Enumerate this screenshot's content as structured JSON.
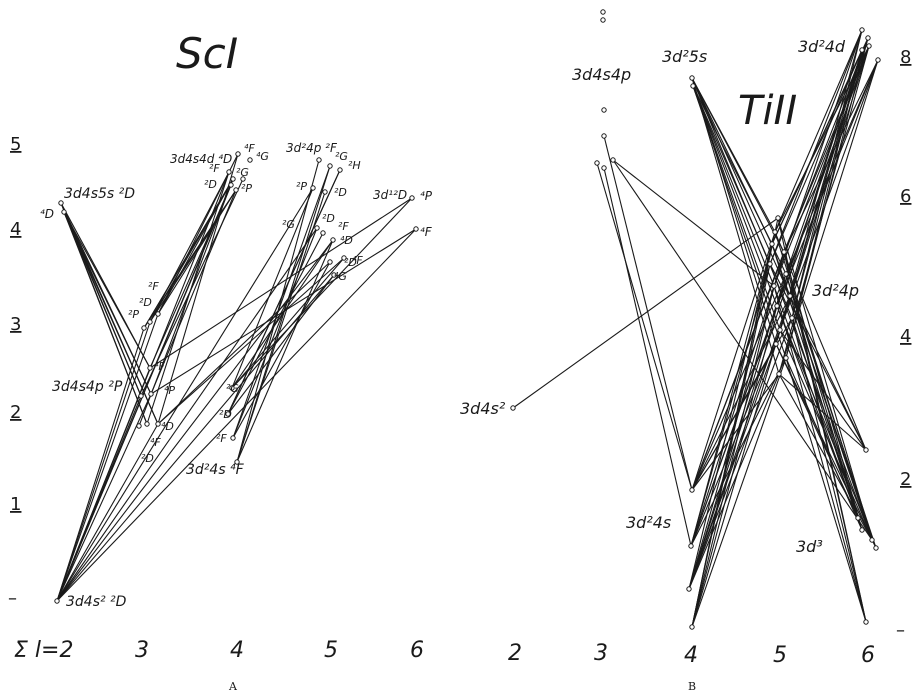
{
  "panels": [
    {
      "title": "ScI",
      "letter": "A",
      "x_ticks": [
        "Σ l=2",
        "3",
        "4",
        "5",
        "6"
      ],
      "y_ticks": [
        "5",
        "4",
        "3",
        "2",
        "1",
        "–"
      ],
      "config_labels": [
        "3d4s5s ²D",
        "3d4s4d ⁴D",
        "3d²4p ²F",
        "3d¹²D",
        "3d4s4p ²P",
        "3d²4s ⁴F",
        "3d4s² ²D"
      ],
      "term_labels": [
        "⁴D",
        "⁴F",
        "⁴G",
        "²F",
        "²G",
        "²D",
        "²P",
        "²F",
        "²D",
        "²P",
        "⁴F",
        "⁴P",
        "⁴D",
        "⁴F",
        "²D",
        "²G",
        "²D",
        "²F",
        "²G",
        "²H",
        "²P",
        "²D",
        "²G",
        "²D",
        "²F",
        "⁴D",
        "⁴G",
        "²D",
        "⁴F",
        "⁴P",
        "⁴F"
      ]
    },
    {
      "title": "TiII",
      "letter": "B",
      "x_ticks": [
        "2",
        "3",
        "4",
        "5",
        "6"
      ],
      "y_ticks": [
        "8",
        "6",
        "4",
        "2",
        "–"
      ],
      "config_labels": [
        "3d4s4p",
        "3d²5s",
        "3d²4d",
        "3d²4p",
        "3d4s²",
        "3d²4s",
        "3d³"
      ],
      "term_labels": []
    }
  ]
}
